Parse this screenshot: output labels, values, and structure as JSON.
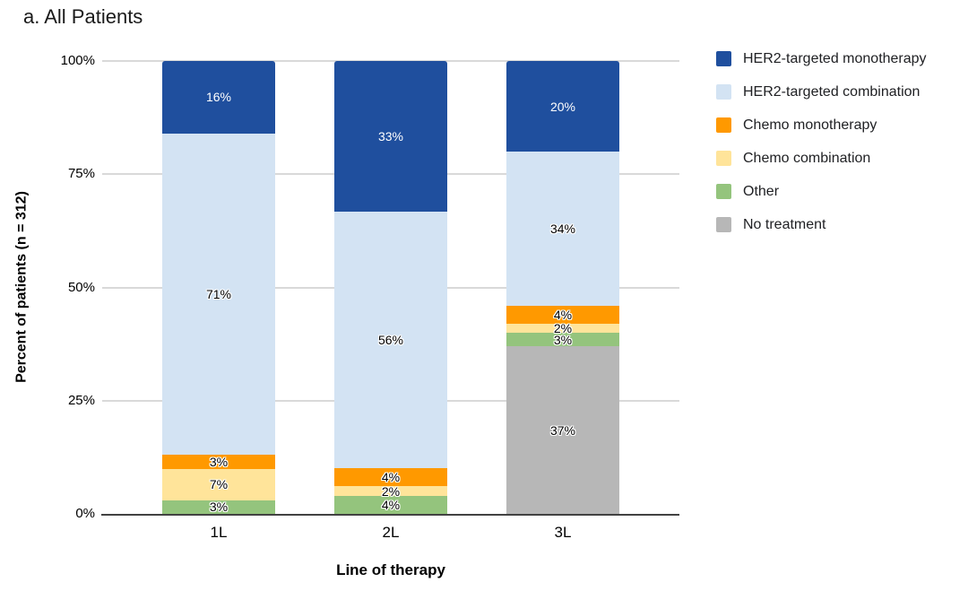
{
  "title": "a. All Patients",
  "colors": {
    "axis_line": "#424242",
    "gridline": "#d9d9d9",
    "background": "#ffffff",
    "text": "#000000"
  },
  "chart_data": {
    "type": "bar",
    "stacked": true,
    "title": "a. All Patients",
    "xlabel": "Line of therapy",
    "ylabel": "Percent of patients (n = 312)",
    "categories": [
      "1L",
      "2L",
      "3L"
    ],
    "series": [
      {
        "name": "HER2-targeted monotherapy",
        "color": "#1f4f9e",
        "label_color": "#ffffff",
        "values": [
          16,
          33,
          20
        ]
      },
      {
        "name": "HER2-targeted combination",
        "color": "#d3e3f3",
        "label_color": "#000000",
        "values": [
          71,
          56,
          34
        ]
      },
      {
        "name": "Chemo monotherapy",
        "color": "#ff9900",
        "label_color": "#000000",
        "values": [
          3,
          4,
          4
        ]
      },
      {
        "name": "Chemo combination",
        "color": "#ffe49a",
        "label_color": "#000000",
        "values": [
          7,
          2,
          2
        ]
      },
      {
        "name": "Other",
        "color": "#94c47d",
        "label_color": "#000000",
        "values": [
          3,
          4,
          3
        ]
      },
      {
        "name": "No treatment",
        "color": "#b7b7b7",
        "label_color": "#000000",
        "values": [
          0,
          0,
          37
        ]
      }
    ],
    "y_ticks": [
      {
        "value": 0,
        "label": "0%"
      },
      {
        "value": 25,
        "label": "25%"
      },
      {
        "value": 50,
        "label": "50%"
      },
      {
        "value": 75,
        "label": "75%"
      },
      {
        "value": 100,
        "label": "100%"
      }
    ],
    "ylim": [
      0,
      100
    ],
    "grid": true,
    "legend_position": "right",
    "value_suffix": "%"
  }
}
